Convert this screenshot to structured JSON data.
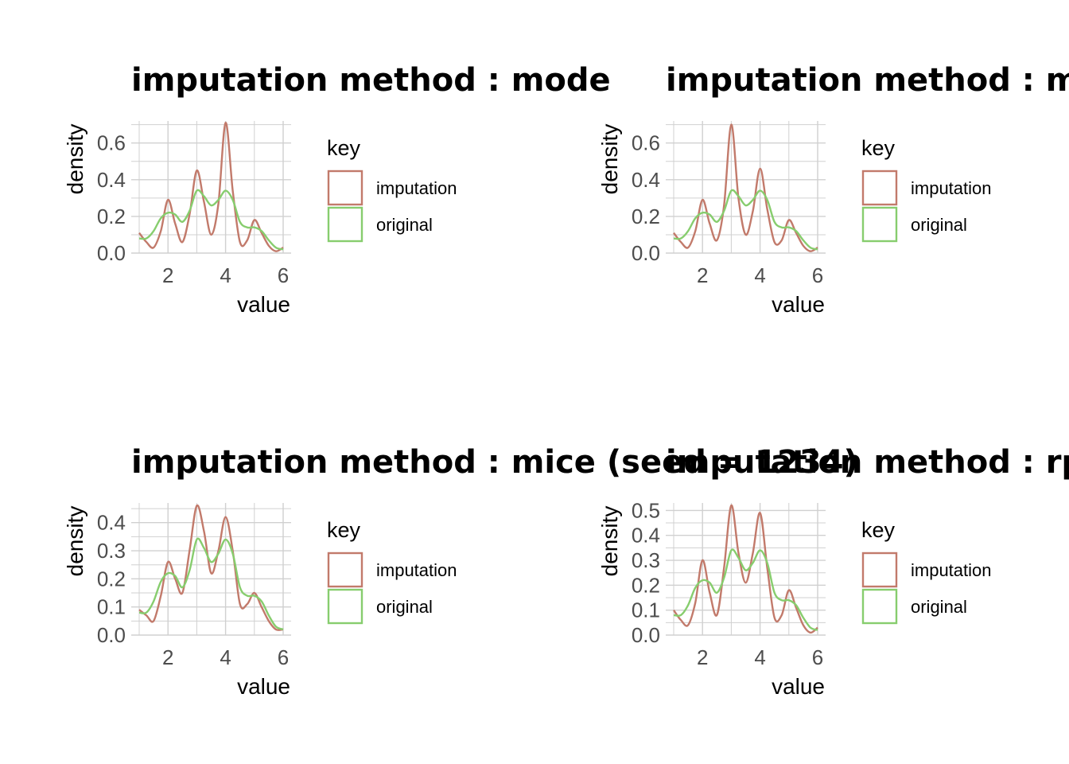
{
  "colors": {
    "imputation": "#c27a6b",
    "original": "#87cd6e",
    "grid": "#d0d0d0"
  },
  "chart_data": [
    {
      "type": "line",
      "title": "imputation method : mode",
      "xlabel": "value",
      "ylabel": "density",
      "xlim": [
        1,
        6
      ],
      "ylim": [
        0,
        0.72
      ],
      "xticks": [
        "2",
        "4",
        "6"
      ],
      "yticks": [
        "0.0",
        "0.2",
        "0.4",
        "0.6"
      ],
      "legend": {
        "title": "key",
        "items": [
          "imputation",
          "original"
        ],
        "position": "right"
      },
      "grid": true,
      "series": [
        {
          "name": "imputation",
          "x": [
            1,
            1.25,
            1.5,
            1.75,
            2,
            2.25,
            2.5,
            2.75,
            3,
            3.25,
            3.5,
            3.75,
            4,
            4.25,
            4.5,
            4.75,
            5,
            5.25,
            5.5,
            5.75,
            6
          ],
          "y": [
            0.11,
            0.06,
            0.03,
            0.12,
            0.29,
            0.16,
            0.06,
            0.21,
            0.45,
            0.28,
            0.1,
            0.27,
            0.71,
            0.34,
            0.06,
            0.07,
            0.18,
            0.11,
            0.04,
            0.01,
            0.03
          ]
        },
        {
          "name": "original",
          "x": [
            1,
            1.25,
            1.5,
            1.75,
            2,
            2.25,
            2.5,
            2.75,
            3,
            3.25,
            3.5,
            3.75,
            4,
            4.25,
            4.5,
            4.75,
            5,
            5.25,
            5.5,
            5.75,
            6
          ],
          "y": [
            0.08,
            0.08,
            0.12,
            0.19,
            0.22,
            0.21,
            0.17,
            0.23,
            0.34,
            0.31,
            0.26,
            0.29,
            0.34,
            0.29,
            0.17,
            0.14,
            0.14,
            0.12,
            0.07,
            0.03,
            0.02
          ]
        }
      ]
    },
    {
      "type": "line",
      "title": "imputation method : median",
      "xlabel": "value",
      "ylabel": "density",
      "xlim": [
        1,
        6
      ],
      "ylim": [
        0,
        0.72
      ],
      "xticks": [
        "2",
        "4",
        "6"
      ],
      "yticks": [
        "0.0",
        "0.2",
        "0.4",
        "0.6"
      ],
      "legend": {
        "title": "key",
        "items": [
          "imputation",
          "original"
        ],
        "position": "right"
      },
      "grid": true,
      "series": [
        {
          "name": "imputation",
          "x": [
            1,
            1.25,
            1.5,
            1.75,
            2,
            2.25,
            2.5,
            2.75,
            3,
            3.25,
            3.5,
            3.75,
            4,
            4.25,
            4.5,
            4.75,
            5,
            5.25,
            5.5,
            5.75,
            6
          ],
          "y": [
            0.11,
            0.06,
            0.03,
            0.12,
            0.29,
            0.16,
            0.07,
            0.26,
            0.7,
            0.3,
            0.1,
            0.23,
            0.46,
            0.24,
            0.06,
            0.07,
            0.18,
            0.11,
            0.04,
            0.01,
            0.03
          ]
        },
        {
          "name": "original",
          "x": [
            1,
            1.25,
            1.5,
            1.75,
            2,
            2.25,
            2.5,
            2.75,
            3,
            3.25,
            3.5,
            3.75,
            4,
            4.25,
            4.5,
            4.75,
            5,
            5.25,
            5.5,
            5.75,
            6
          ],
          "y": [
            0.08,
            0.08,
            0.12,
            0.19,
            0.22,
            0.21,
            0.17,
            0.23,
            0.34,
            0.31,
            0.26,
            0.29,
            0.34,
            0.29,
            0.17,
            0.14,
            0.14,
            0.12,
            0.07,
            0.03,
            0.02
          ]
        }
      ]
    },
    {
      "type": "line",
      "title": "imputation method : mice (seed = 1234)",
      "xlabel": "value",
      "ylabel": "density",
      "xlim": [
        1,
        6
      ],
      "ylim": [
        0,
        0.47
      ],
      "xticks": [
        "2",
        "4",
        "6"
      ],
      "yticks": [
        "0.0",
        "0.1",
        "0.2",
        "0.3",
        "0.4"
      ],
      "legend": {
        "title": "key",
        "items": [
          "imputation",
          "original"
        ],
        "position": "right"
      },
      "grid": true,
      "series": [
        {
          "name": "imputation",
          "x": [
            1,
            1.25,
            1.5,
            1.75,
            2,
            2.25,
            2.5,
            2.75,
            3,
            3.25,
            3.5,
            3.75,
            4,
            4.25,
            4.5,
            4.75,
            5,
            5.25,
            5.5,
            5.75,
            6
          ],
          "y": [
            0.09,
            0.07,
            0.05,
            0.14,
            0.26,
            0.2,
            0.15,
            0.3,
            0.46,
            0.37,
            0.22,
            0.3,
            0.42,
            0.3,
            0.11,
            0.11,
            0.15,
            0.1,
            0.05,
            0.02,
            0.02
          ]
        },
        {
          "name": "original",
          "x": [
            1,
            1.25,
            1.5,
            1.75,
            2,
            2.25,
            2.5,
            2.75,
            3,
            3.25,
            3.5,
            3.75,
            4,
            4.25,
            4.5,
            4.75,
            5,
            5.25,
            5.5,
            5.75,
            6
          ],
          "y": [
            0.08,
            0.08,
            0.12,
            0.19,
            0.22,
            0.21,
            0.17,
            0.23,
            0.34,
            0.31,
            0.26,
            0.29,
            0.34,
            0.29,
            0.17,
            0.14,
            0.14,
            0.12,
            0.07,
            0.03,
            0.02
          ]
        }
      ]
    },
    {
      "type": "line",
      "title": "imputation method : rpart",
      "xlabel": "value",
      "ylabel": "density",
      "xlim": [
        1,
        6
      ],
      "ylim": [
        0,
        0.53
      ],
      "xticks": [
        "2",
        "4",
        "6"
      ],
      "yticks": [
        "0.0",
        "0.1",
        "0.2",
        "0.3",
        "0.4",
        "0.5"
      ],
      "legend": {
        "title": "key",
        "items": [
          "imputation",
          "original"
        ],
        "position": "right"
      },
      "grid": true,
      "series": [
        {
          "name": "imputation",
          "x": [
            1,
            1.25,
            1.5,
            1.75,
            2,
            2.25,
            2.5,
            2.75,
            3,
            3.25,
            3.5,
            3.75,
            4,
            4.25,
            4.5,
            4.75,
            5,
            5.25,
            5.5,
            5.75,
            6
          ],
          "y": [
            0.1,
            0.06,
            0.04,
            0.13,
            0.3,
            0.17,
            0.08,
            0.27,
            0.52,
            0.33,
            0.21,
            0.33,
            0.49,
            0.27,
            0.07,
            0.08,
            0.18,
            0.11,
            0.04,
            0.01,
            0.03
          ]
        },
        {
          "name": "original",
          "x": [
            1,
            1.25,
            1.5,
            1.75,
            2,
            2.25,
            2.5,
            2.75,
            3,
            3.25,
            3.5,
            3.75,
            4,
            4.25,
            4.5,
            4.75,
            5,
            5.25,
            5.5,
            5.75,
            6
          ],
          "y": [
            0.08,
            0.08,
            0.12,
            0.19,
            0.22,
            0.21,
            0.17,
            0.23,
            0.34,
            0.31,
            0.26,
            0.29,
            0.34,
            0.29,
            0.17,
            0.14,
            0.14,
            0.12,
            0.07,
            0.03,
            0.02
          ]
        }
      ]
    }
  ]
}
